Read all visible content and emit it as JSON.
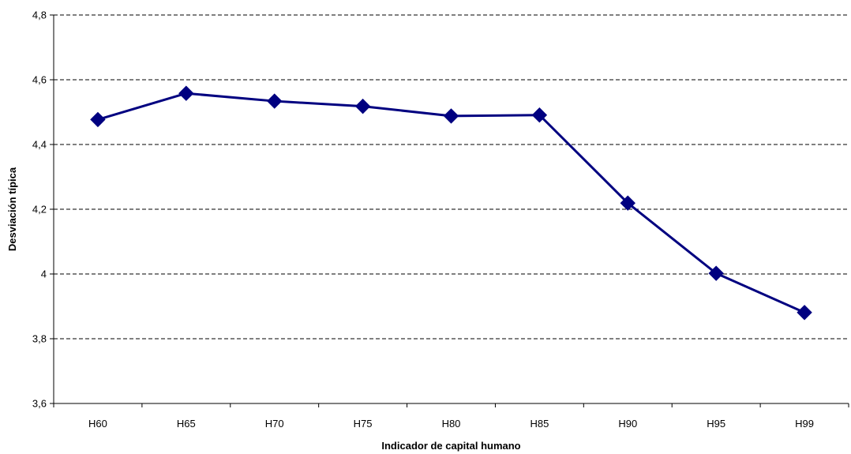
{
  "chart_data": {
    "type": "line",
    "title": "",
    "xlabel": "Indicador de capital humano",
    "ylabel": "Desviación típica",
    "categories": [
      "H60",
      "H65",
      "H70",
      "H75",
      "H80",
      "H85",
      "H90",
      "H95",
      "H99"
    ],
    "series": [
      {
        "values": [
          4.477,
          4.558,
          4.534,
          4.518,
          4.488,
          4.491,
          4.219,
          4.002,
          3.881
        ]
      }
    ],
    "ylim": [
      3.6,
      4.8
    ],
    "yticks": [
      "3,6",
      "3,8",
      "4",
      "4,2",
      "4,4",
      "4,6",
      "4,8"
    ],
    "ytick_values": [
      3.6,
      3.8,
      4.0,
      4.2,
      4.4,
      4.6,
      4.8
    ],
    "grid": true,
    "grid_style": "dashed",
    "series_color": "#000080",
    "marker": "diamond"
  }
}
